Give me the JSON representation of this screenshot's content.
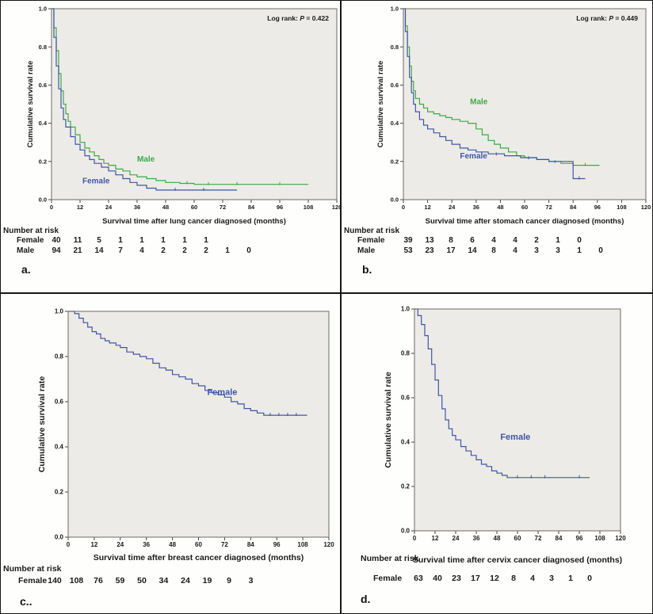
{
  "colors": {
    "female": "#3e56a6",
    "male": "#3caa47",
    "plot_bg": "#edebe7",
    "frame": "#6e6a64",
    "text": "#1a1a1a"
  },
  "chart_data": [
    {
      "id": "a",
      "type": "line",
      "subtype": "kaplan-meier-step",
      "panel_label": "a.",
      "annotation": {
        "prefix": "Log rank: ",
        "italic": "P",
        "suffix": " = 0.422"
      },
      "ylabel": "Cumulative survival rate",
      "xlabel": "Survival time after lung cancer diagnosed (months)",
      "xlim": [
        0,
        120
      ],
      "ylim": [
        0.0,
        1.0
      ],
      "xticks": [
        0,
        12,
        24,
        36,
        48,
        60,
        72,
        84,
        96,
        108,
        120
      ],
      "yticks": [
        0.0,
        0.2,
        0.4,
        0.6,
        0.8,
        1.0
      ],
      "ytick_labels": [
        "0.0",
        "0.2",
        "0.4",
        "0.6",
        "0.8",
        "1.0"
      ],
      "legend_position": "inline-labels",
      "grid": false,
      "series": [
        {
          "name": "Male",
          "color_key": "male",
          "label_pos": [
            36,
            0.2
          ],
          "points": [
            [
              0,
              1.0
            ],
            [
              1,
              0.9
            ],
            [
              2,
              0.78
            ],
            [
              3,
              0.66
            ],
            [
              4,
              0.57
            ],
            [
              5,
              0.5
            ],
            [
              6,
              0.45
            ],
            [
              7,
              0.41
            ],
            [
              8,
              0.38
            ],
            [
              10,
              0.34
            ],
            [
              12,
              0.3
            ],
            [
              14,
              0.27
            ],
            [
              16,
              0.25
            ],
            [
              18,
              0.23
            ],
            [
              20,
              0.21
            ],
            [
              22,
              0.19
            ],
            [
              24,
              0.18
            ],
            [
              27,
              0.16
            ],
            [
              30,
              0.15
            ],
            [
              33,
              0.13
            ],
            [
              36,
              0.12
            ],
            [
              40,
              0.11
            ],
            [
              44,
              0.1
            ],
            [
              48,
              0.09
            ],
            [
              54,
              0.085
            ],
            [
              60,
              0.08
            ],
            [
              108,
              0.08
            ]
          ],
          "censors": [
            [
              57,
              0.085
            ],
            [
              66,
              0.08
            ],
            [
              78,
              0.08
            ],
            [
              96,
              0.08
            ]
          ]
        },
        {
          "name": "Female",
          "color_key": "female",
          "label_pos": [
            13,
            0.085
          ],
          "points": [
            [
              0,
              1.0
            ],
            [
              1,
              0.85
            ],
            [
              2,
              0.7
            ],
            [
              3,
              0.58
            ],
            [
              4,
              0.48
            ],
            [
              5,
              0.42
            ],
            [
              6,
              0.38
            ],
            [
              8,
              0.33
            ],
            [
              10,
              0.29
            ],
            [
              12,
              0.26
            ],
            [
              14,
              0.23
            ],
            [
              16,
              0.21
            ],
            [
              18,
              0.19
            ],
            [
              21,
              0.17
            ],
            [
              24,
              0.15
            ],
            [
              27,
              0.13
            ],
            [
              30,
              0.11
            ],
            [
              33,
              0.09
            ],
            [
              36,
              0.075
            ],
            [
              40,
              0.06
            ],
            [
              44,
              0.05
            ],
            [
              78,
              0.05
            ]
          ],
          "censors": [
            [
              52,
              0.05
            ],
            [
              64,
              0.05
            ]
          ]
        }
      ],
      "number_at_risk": {
        "title": "Number at risk",
        "rows": [
          {
            "name": "Female",
            "counts": [
              40,
              11,
              5,
              1,
              1,
              1,
              1,
              1
            ]
          },
          {
            "name": "Male",
            "counts": [
              94,
              21,
              14,
              7,
              4,
              2,
              2,
              2,
              1,
              0
            ]
          }
        ]
      }
    },
    {
      "id": "b",
      "type": "line",
      "subtype": "kaplan-meier-step",
      "panel_label": "b.",
      "annotation": {
        "prefix": "Log rank: ",
        "italic": "P",
        "suffix": " = 0.449"
      },
      "ylabel": "Cumulative survival rate",
      "xlabel": "Survival time after stomach cancer diagnosed (months)",
      "xlim": [
        0,
        120
      ],
      "ylim": [
        0.0,
        1.0
      ],
      "xticks": [
        0,
        12,
        24,
        36,
        48,
        60,
        72,
        84,
        96,
        108,
        120
      ],
      "yticks": [
        0.0,
        0.2,
        0.4,
        0.6,
        0.8,
        1.0
      ],
      "ytick_labels": [
        "0.0",
        "0.2",
        "0.4",
        "0.6",
        "0.8",
        "1.0"
      ],
      "legend_position": "inline-labels",
      "grid": false,
      "series": [
        {
          "name": "Male",
          "color_key": "male",
          "label_pos": [
            33,
            0.5
          ],
          "points": [
            [
              0,
              1.0
            ],
            [
              1,
              0.91
            ],
            [
              2,
              0.8
            ],
            [
              3,
              0.7
            ],
            [
              4,
              0.62
            ],
            [
              5,
              0.57
            ],
            [
              6,
              0.53
            ],
            [
              8,
              0.5
            ],
            [
              10,
              0.48
            ],
            [
              12,
              0.46
            ],
            [
              15,
              0.45
            ],
            [
              18,
              0.44
            ],
            [
              21,
              0.43
            ],
            [
              24,
              0.42
            ],
            [
              28,
              0.41
            ],
            [
              32,
              0.4
            ],
            [
              36,
              0.37
            ],
            [
              39,
              0.34
            ],
            [
              42,
              0.31
            ],
            [
              45,
              0.29
            ],
            [
              48,
              0.27
            ],
            [
              52,
              0.25
            ],
            [
              56,
              0.23
            ],
            [
              60,
              0.22
            ],
            [
              66,
              0.21
            ],
            [
              72,
              0.2
            ],
            [
              78,
              0.19
            ],
            [
              84,
              0.18
            ],
            [
              97,
              0.18
            ]
          ],
          "censors": [
            [
              75,
              0.195
            ],
            [
              90,
              0.18
            ]
          ]
        },
        {
          "name": "Female",
          "color_key": "female",
          "label_pos": [
            28,
            0.215
          ],
          "points": [
            [
              0,
              1.0
            ],
            [
              1,
              0.88
            ],
            [
              2,
              0.75
            ],
            [
              3,
              0.64
            ],
            [
              4,
              0.56
            ],
            [
              5,
              0.5
            ],
            [
              6,
              0.46
            ],
            [
              8,
              0.42
            ],
            [
              10,
              0.39
            ],
            [
              12,
              0.37
            ],
            [
              15,
              0.35
            ],
            [
              18,
              0.33
            ],
            [
              21,
              0.31
            ],
            [
              24,
              0.29
            ],
            [
              28,
              0.27
            ],
            [
              32,
              0.26
            ],
            [
              36,
              0.25
            ],
            [
              42,
              0.24
            ],
            [
              50,
              0.23
            ],
            [
              58,
              0.22
            ],
            [
              66,
              0.21
            ],
            [
              72,
              0.2
            ],
            [
              84,
              0.11
            ],
            [
              90,
              0.11
            ]
          ],
          "censors": [
            [
              46,
              0.235
            ],
            [
              62,
              0.215
            ],
            [
              87,
              0.11
            ]
          ]
        }
      ],
      "number_at_risk": {
        "title": "Number at risk",
        "rows": [
          {
            "name": "Female",
            "counts": [
              39,
              13,
              8,
              6,
              4,
              4,
              2,
              1,
              0
            ]
          },
          {
            "name": "Male",
            "counts": [
              53,
              23,
              17,
              14,
              8,
              4,
              3,
              3,
              1,
              0
            ]
          }
        ]
      }
    },
    {
      "id": "c",
      "type": "line",
      "subtype": "kaplan-meier-step",
      "panel_label": "c..",
      "annotation": null,
      "ylabel": "Cumulative survival rate",
      "xlabel": "Survival time after breast cancer diagnosed (months)",
      "xlim": [
        0,
        120
      ],
      "ylim": [
        0.0,
        1.0
      ],
      "xticks": [
        0,
        12,
        24,
        36,
        48,
        60,
        72,
        84,
        96,
        108,
        120
      ],
      "yticks": [
        0.0,
        0.2,
        0.4,
        0.6,
        0.8,
        1.0
      ],
      "ytick_labels": [
        "0.0",
        "0.2",
        "0.4",
        "0.6",
        "0.8",
        "1.0"
      ],
      "legend_position": "inline-labels",
      "grid": false,
      "series": [
        {
          "name": "Female",
          "color_key": "female",
          "label_pos": [
            64,
            0.63
          ],
          "points": [
            [
              0,
              1.0
            ],
            [
              3,
              0.99
            ],
            [
              5,
              0.97
            ],
            [
              7,
              0.95
            ],
            [
              9,
              0.93
            ],
            [
              11,
              0.91
            ],
            [
              13,
              0.9
            ],
            [
              15,
              0.88
            ],
            [
              17,
              0.87
            ],
            [
              19,
              0.86
            ],
            [
              22,
              0.85
            ],
            [
              24,
              0.84
            ],
            [
              27,
              0.82
            ],
            [
              30,
              0.81
            ],
            [
              33,
              0.8
            ],
            [
              36,
              0.79
            ],
            [
              39,
              0.77
            ],
            [
              42,
              0.75
            ],
            [
              45,
              0.74
            ],
            [
              48,
              0.72
            ],
            [
              51,
              0.71
            ],
            [
              54,
              0.7
            ],
            [
              57,
              0.68
            ],
            [
              60,
              0.67
            ],
            [
              63,
              0.65
            ],
            [
              66,
              0.64
            ],
            [
              69,
              0.63
            ],
            [
              72,
              0.62
            ],
            [
              75,
              0.6
            ],
            [
              78,
              0.59
            ],
            [
              81,
              0.57
            ],
            [
              84,
              0.56
            ],
            [
              87,
              0.55
            ],
            [
              90,
              0.54
            ],
            [
              110,
              0.54
            ]
          ],
          "censors": [
            [
              93,
              0.54
            ],
            [
              97,
              0.54
            ],
            [
              101,
              0.54
            ],
            [
              105,
              0.54
            ]
          ]
        }
      ],
      "number_at_risk": {
        "title": "Number at risk",
        "rows": [
          {
            "name": "Female",
            "counts": [
              140,
              108,
              76,
              59,
              50,
              34,
              24,
              19,
              9,
              3
            ]
          }
        ]
      }
    },
    {
      "id": "d",
      "type": "line",
      "subtype": "kaplan-meier-step",
      "panel_label": "d.",
      "annotation": null,
      "ylabel": "Cumulative survival rate",
      "xlabel": "Survival time after cervix cancer diagnosed (months)",
      "xlim": [
        0,
        120
      ],
      "ylim": [
        0.0,
        1.0
      ],
      "xticks": [
        0,
        12,
        24,
        36,
        48,
        60,
        72,
        84,
        96,
        108,
        120
      ],
      "yticks": [
        0.0,
        0.2,
        0.4,
        0.6,
        0.8,
        1.0
      ],
      "ytick_labels": [
        "0.0",
        "0.2",
        "0.4",
        "0.6",
        "0.8",
        "1.0"
      ],
      "legend_position": "inline-labels",
      "grid": false,
      "series": [
        {
          "name": "Female",
          "color_key": "female",
          "label_pos": [
            50,
            0.41
          ],
          "points": [
            [
              0,
              1.0
            ],
            [
              2,
              0.97
            ],
            [
              4,
              0.93
            ],
            [
              6,
              0.88
            ],
            [
              8,
              0.82
            ],
            [
              10,
              0.75
            ],
            [
              12,
              0.68
            ],
            [
              14,
              0.61
            ],
            [
              16,
              0.55
            ],
            [
              18,
              0.5
            ],
            [
              20,
              0.46
            ],
            [
              22,
              0.43
            ],
            [
              24,
              0.41
            ],
            [
              27,
              0.38
            ],
            [
              30,
              0.36
            ],
            [
              33,
              0.34
            ],
            [
              36,
              0.32
            ],
            [
              39,
              0.3
            ],
            [
              42,
              0.29
            ],
            [
              45,
              0.27
            ],
            [
              48,
              0.26
            ],
            [
              51,
              0.25
            ],
            [
              54,
              0.24
            ],
            [
              102,
              0.24
            ]
          ],
          "censors": [
            [
              60,
              0.24
            ],
            [
              68,
              0.24
            ],
            [
              76,
              0.24
            ],
            [
              96,
              0.24
            ]
          ]
        }
      ],
      "number_at_risk": {
        "title": "Number at risk",
        "rows": [
          {
            "name": "Female",
            "counts": [
              63,
              40,
              23,
              17,
              12,
              8,
              4,
              3,
              1,
              0
            ]
          }
        ]
      }
    }
  ]
}
